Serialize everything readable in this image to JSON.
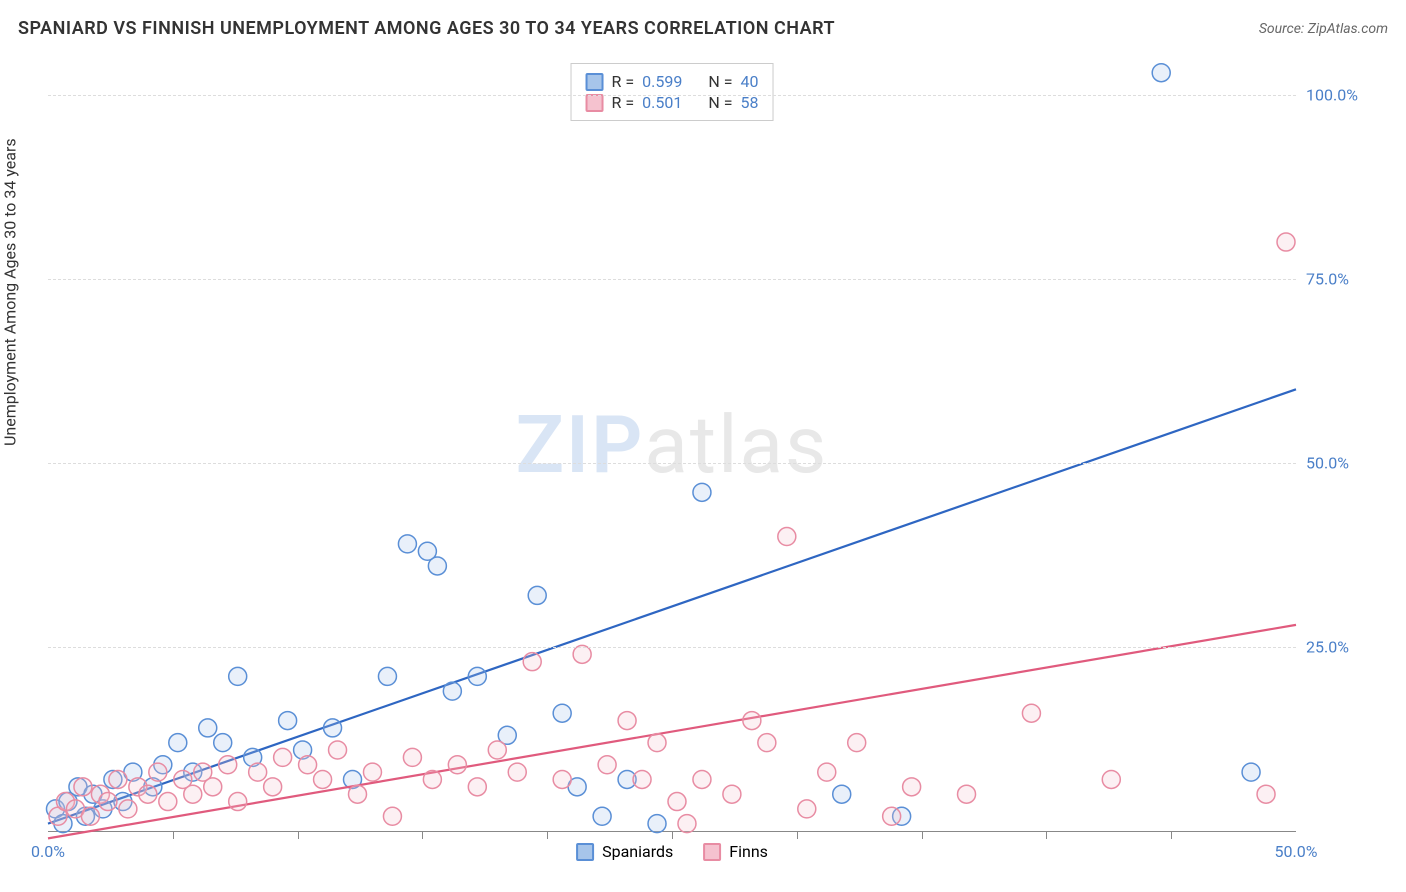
{
  "title": "SPANIARD VS FINNISH UNEMPLOYMENT AMONG AGES 30 TO 34 YEARS CORRELATION CHART",
  "source": "Source: ZipAtlas.com",
  "y_axis_label": "Unemployment Among Ages 30 to 34 years",
  "watermark_bold": "ZIP",
  "watermark_rest": "atlas",
  "chart": {
    "type": "scatter",
    "xlim": [
      0,
      50
    ],
    "ylim": [
      0,
      105
    ],
    "x_ticks_label": {
      "0": "0.0%",
      "50": "50.0%"
    },
    "x_ticks_minor": [
      5,
      10,
      15,
      20,
      25,
      30,
      35,
      40,
      45
    ],
    "y_ticks": {
      "25": "25.0%",
      "50": "50.0%",
      "75": "75.0%",
      "100": "100.0%"
    },
    "background_color": "#ffffff",
    "grid_color": "#dddddd",
    "axis_color": "#888888",
    "tick_label_color": "#4a7fc8",
    "marker_radius": 9,
    "marker_stroke_width": 1.5,
    "marker_fill_opacity": 0.25,
    "line_width": 2.2,
    "series": [
      {
        "name": "Spaniards",
        "color_stroke": "#5a8fd6",
        "color_fill": "#a7c5ea",
        "line_color": "#2e66c2",
        "R": "0.599",
        "N": "40",
        "trend": {
          "x1": 0,
          "y1": 1,
          "x2": 50,
          "y2": 60
        },
        "points": [
          [
            0.3,
            3
          ],
          [
            0.6,
            1
          ],
          [
            0.8,
            4
          ],
          [
            1.2,
            6
          ],
          [
            1.5,
            2
          ],
          [
            1.8,
            5
          ],
          [
            2.2,
            3
          ],
          [
            2.6,
            7
          ],
          [
            3,
            4
          ],
          [
            3.4,
            8
          ],
          [
            4.2,
            6
          ],
          [
            4.6,
            9
          ],
          [
            5.2,
            12
          ],
          [
            5.8,
            8
          ],
          [
            6.4,
            14
          ],
          [
            7,
            12
          ],
          [
            7.6,
            21
          ],
          [
            8.2,
            10
          ],
          [
            9.6,
            15
          ],
          [
            10.2,
            11
          ],
          [
            11.4,
            14
          ],
          [
            12.2,
            7
          ],
          [
            13.6,
            21
          ],
          [
            14.4,
            39
          ],
          [
            15.2,
            38
          ],
          [
            15.6,
            36
          ],
          [
            16.2,
            19
          ],
          [
            17.2,
            21
          ],
          [
            18.4,
            13
          ],
          [
            19.6,
            32
          ],
          [
            20.6,
            16
          ],
          [
            21.2,
            6
          ],
          [
            22.2,
            2
          ],
          [
            23.2,
            7
          ],
          [
            24.4,
            1
          ],
          [
            26.2,
            46
          ],
          [
            31.8,
            5
          ],
          [
            34.2,
            2
          ],
          [
            44.6,
            103
          ],
          [
            48.2,
            8
          ]
        ]
      },
      {
        "name": "Finns",
        "color_stroke": "#e88ca3",
        "color_fill": "#f5c2cf",
        "line_color": "#e05a7d",
        "R": "0.501",
        "N": "58",
        "trend": {
          "x1": 0,
          "y1": -1,
          "x2": 50,
          "y2": 28
        },
        "points": [
          [
            0.4,
            2
          ],
          [
            0.7,
            4
          ],
          [
            1.1,
            3
          ],
          [
            1.4,
            6
          ],
          [
            1.7,
            2
          ],
          [
            2.1,
            5
          ],
          [
            2.4,
            4
          ],
          [
            2.8,
            7
          ],
          [
            3.2,
            3
          ],
          [
            3.6,
            6
          ],
          [
            4,
            5
          ],
          [
            4.4,
            8
          ],
          [
            4.8,
            4
          ],
          [
            5.4,
            7
          ],
          [
            5.8,
            5
          ],
          [
            6.2,
            8
          ],
          [
            6.6,
            6
          ],
          [
            7.2,
            9
          ],
          [
            7.6,
            4
          ],
          [
            8.4,
            8
          ],
          [
            9,
            6
          ],
          [
            9.4,
            10
          ],
          [
            10.4,
            9
          ],
          [
            11,
            7
          ],
          [
            11.6,
            11
          ],
          [
            12.4,
            5
          ],
          [
            13,
            8
          ],
          [
            13.8,
            2
          ],
          [
            14.6,
            10
          ],
          [
            15.4,
            7
          ],
          [
            16.4,
            9
          ],
          [
            17.2,
            6
          ],
          [
            18,
            11
          ],
          [
            18.8,
            8
          ],
          [
            19.4,
            23
          ],
          [
            20.6,
            7
          ],
          [
            21.4,
            24
          ],
          [
            22.4,
            9
          ],
          [
            23.2,
            15
          ],
          [
            23.8,
            7
          ],
          [
            24.4,
            12
          ],
          [
            25.2,
            4
          ],
          [
            25.6,
            1
          ],
          [
            26.2,
            7
          ],
          [
            27.4,
            5
          ],
          [
            28.2,
            15
          ],
          [
            28.8,
            12
          ],
          [
            29.6,
            40
          ],
          [
            30.4,
            3
          ],
          [
            31.2,
            8
          ],
          [
            32.4,
            12
          ],
          [
            33.8,
            2
          ],
          [
            34.6,
            6
          ],
          [
            36.8,
            5
          ],
          [
            39.4,
            16
          ],
          [
            42.6,
            7
          ],
          [
            49.6,
            80
          ],
          [
            48.8,
            5
          ]
        ]
      }
    ]
  },
  "legend_top": [
    {
      "swatch_fill": "#a7c5ea",
      "swatch_stroke": "#5a8fd6",
      "R_label": "R =",
      "R": "0.599",
      "N_label": "N =",
      "N": "40"
    },
    {
      "swatch_fill": "#f5c2cf",
      "swatch_stroke": "#e88ca3",
      "R_label": "R =",
      "R": "0.501",
      "N_label": "N =",
      "N": "58"
    }
  ],
  "legend_bottom": [
    {
      "swatch_fill": "#a7c5ea",
      "swatch_stroke": "#5a8fd6",
      "label": "Spaniards"
    },
    {
      "swatch_fill": "#f5c2cf",
      "swatch_stroke": "#e88ca3",
      "label": "Finns"
    }
  ]
}
